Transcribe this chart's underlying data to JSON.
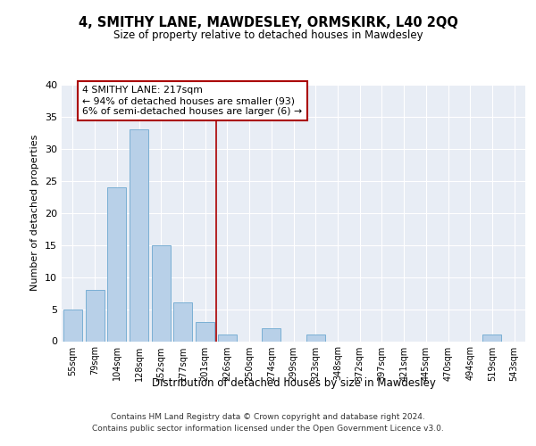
{
  "title": "4, SMITHY LANE, MAWDESLEY, ORMSKIRK, L40 2QQ",
  "subtitle": "Size of property relative to detached houses in Mawdesley",
  "xlabel": "Distribution of detached houses by size in Mawdesley",
  "ylabel": "Number of detached properties",
  "categories": [
    "55sqm",
    "79sqm",
    "104sqm",
    "128sqm",
    "152sqm",
    "177sqm",
    "201sqm",
    "226sqm",
    "250sqm",
    "274sqm",
    "299sqm",
    "323sqm",
    "348sqm",
    "372sqm",
    "397sqm",
    "421sqm",
    "445sqm",
    "470sqm",
    "494sqm",
    "519sqm",
    "543sqm"
  ],
  "values": [
    5,
    8,
    24,
    33,
    15,
    6,
    3,
    1,
    0,
    2,
    0,
    1,
    0,
    0,
    0,
    0,
    0,
    0,
    0,
    1,
    0
  ],
  "bar_color": "#b8d0e8",
  "bar_edge_color": "#7aafd4",
  "vline_color": "#aa0000",
  "annotation_text": "4 SMITHY LANE: 217sqm\n← 94% of detached houses are smaller (93)\n6% of semi-detached houses are larger (6) →",
  "annotation_box_color": "white",
  "annotation_box_edge_color": "#aa0000",
  "ylim": [
    0,
    40
  ],
  "yticks": [
    0,
    5,
    10,
    15,
    20,
    25,
    30,
    35,
    40
  ],
  "background_color": "#e8edf5",
  "grid_color": "white",
  "footer_line1": "Contains HM Land Registry data © Crown copyright and database right 2024.",
  "footer_line2": "Contains public sector information licensed under the Open Government Licence v3.0."
}
